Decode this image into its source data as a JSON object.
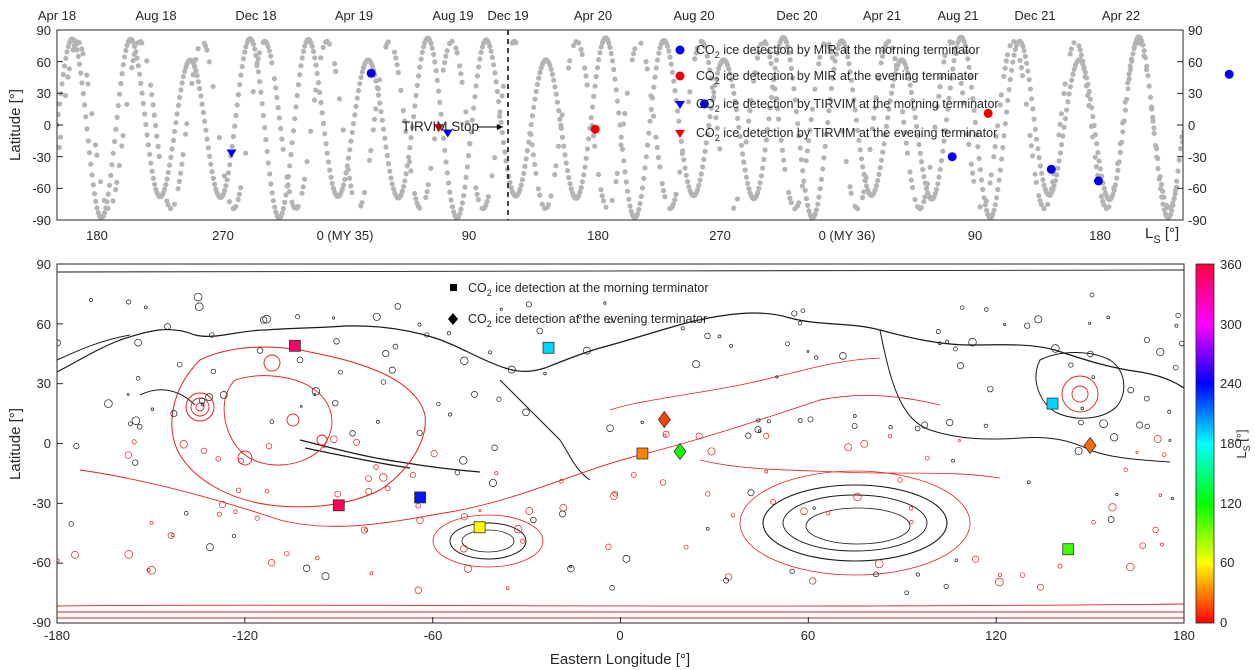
{
  "chart_data": [
    {
      "type": "scatter",
      "title": "",
      "top_axis_ticks": [
        "Apr 18",
        "Aug 18",
        "Dec 18",
        "Apr 19",
        "Aug 19",
        "Dec 19",
        "Apr 20",
        "Aug 20",
        "Dec 20",
        "Apr 21",
        "Aug 21",
        "Dec 21",
        "Apr 22"
      ],
      "bottom_axis_ticks": [
        "180",
        "270",
        "0 (MY 35)",
        "90",
        "180",
        "270",
        "0 (MY 36)",
        "90",
        "180"
      ],
      "xlabel": "L",
      "xlabel_sub": "S",
      "xlabel_unit": " [°]",
      "ylabel": "Latitude [°]",
      "ylim": [
        -90,
        90
      ],
      "yticks": [
        "90",
        "60",
        "30",
        "0",
        "-30",
        "-60",
        "-90"
      ],
      "annotation": "TIRVIM Stop",
      "stop_ls_index": 1,
      "legend": [
        {
          "pre": "CO",
          "sub": "2",
          "post": " ice detection by MIR at the morning terminator",
          "marker": "circle",
          "color": "#0000ee"
        },
        {
          "pre": "CO",
          "sub": "2",
          "post": " ice detection by MIR at the evening terminator",
          "marker": "circle",
          "color": "#ee0000"
        },
        {
          "pre": "CO",
          "sub": "2",
          "post": " ice detection by TIRVIM at the morning terminator",
          "marker": "triangle",
          "color": "#0000ee"
        },
        {
          "pre": "CO",
          "sub": "2",
          "post": " ice detection by TIRVIM at the evening terminator",
          "marker": "triangle",
          "color": "#ee0000"
        }
      ],
      "coverage_color": "#b4b4b4",
      "detections": [
        {
          "t": 0.155,
          "lat": -27,
          "type": "tirvim-morning"
        },
        {
          "t": 0.279,
          "lat": 49,
          "type": "mir-morning"
        },
        {
          "t": 0.339,
          "lat": -3,
          "type": "tirvim-evening"
        },
        {
          "t": 0.347,
          "lat": -8,
          "type": "tirvim-morning"
        },
        {
          "t": 0.478,
          "lat": -4,
          "type": "mir-evening"
        },
        {
          "t": 0.575,
          "lat": 20,
          "type": "mir-morning"
        },
        {
          "t": 0.795,
          "lat": -30,
          "type": "mir-morning"
        },
        {
          "t": 0.827,
          "lat": 11,
          "type": "mir-evening"
        },
        {
          "t": 0.883,
          "lat": -42,
          "type": "mir-morning"
        },
        {
          "t": 0.925,
          "lat": -53,
          "type": "mir-morning"
        },
        {
          "t": 1.041,
          "lat": 48,
          "type": "mir-morning"
        }
      ]
    },
    {
      "type": "scatter",
      "title": "",
      "xlabel": "Eastern Longitude [°]",
      "ylabel": "Latitude [°]",
      "xlim": [
        -180,
        180
      ],
      "ylim": [
        -90,
        90
      ],
      "xticks": [
        "-180",
        "-120",
        "-60",
        "0",
        "60",
        "120",
        "180"
      ],
      "yticks": [
        "90",
        "60",
        "30",
        "0",
        "-30",
        "-60",
        "-90"
      ],
      "colorbar_label": "L",
      "colorbar_label_sub": "S",
      "colorbar_unit": " [°]",
      "colorbar_ticks": [
        "360",
        "300",
        "240",
        "180",
        "120",
        "60",
        "0"
      ],
      "colorbar_range": [
        0,
        360
      ],
      "legend": [
        {
          "pre": "CO",
          "sub": "2",
          "post": " ice detection at the morning terminator",
          "marker": "square"
        },
        {
          "pre": "CO",
          "sub": "2",
          "post": " ice detection at the evening terminator",
          "marker": "diamond"
        }
      ],
      "points": [
        {
          "lon": -104,
          "lat": 49,
          "ls": 335,
          "marker": "square"
        },
        {
          "lon": -90,
          "lat": -31,
          "ls": 340,
          "marker": "square"
        },
        {
          "lon": -64,
          "lat": -27,
          "ls": 235,
          "marker": "square"
        },
        {
          "lon": -45,
          "lat": -42,
          "ls": 60,
          "marker": "square"
        },
        {
          "lon": -23,
          "lat": 48,
          "ls": 190,
          "marker": "square"
        },
        {
          "lon": 7,
          "lat": -5,
          "ls": 30,
          "marker": "square"
        },
        {
          "lon": 138,
          "lat": 20,
          "ls": 190,
          "marker": "square"
        },
        {
          "lon": 143,
          "lat": -53,
          "ls": 105,
          "marker": "square"
        },
        {
          "lon": 14,
          "lat": 12,
          "ls": 15,
          "marker": "diamond"
        },
        {
          "lon": 19,
          "lat": -4,
          "ls": 115,
          "marker": "diamond"
        },
        {
          "lon": 150,
          "lat": -1,
          "ls": 25,
          "marker": "diamond"
        }
      ]
    }
  ]
}
